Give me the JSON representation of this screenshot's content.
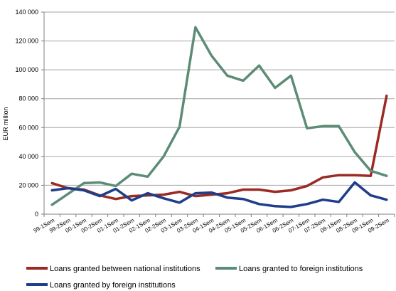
{
  "chart_data": {
    "type": "line",
    "title": "",
    "xlabel": "",
    "ylabel": "EUR million",
    "ylim": [
      0,
      140000
    ],
    "yticks": [
      0,
      20000,
      40000,
      60000,
      80000,
      100000,
      120000,
      140000
    ],
    "ytick_labels": [
      "0",
      "20 000",
      "40 000",
      "60 000",
      "80 000",
      "100 000",
      "120 000",
      "140 000"
    ],
    "grid": "horizontal",
    "legend_position": "bottom",
    "categories": [
      "99-1Sem",
      "99-2Sem",
      "00-1Sem",
      "00-2Sem",
      "01-1Sem",
      "01-2Sem",
      "02-1Sem",
      "02-2Sem",
      "03-1Sem",
      "03-2Sem",
      "04-1Sem",
      "04-2Sem",
      "05-1Sem",
      "05-2Sem",
      "06-1Sem",
      "06-2Sem",
      "07-1Sem",
      "07-2Sem",
      "08-1Sem",
      "08-2Sem",
      "09-1Sem",
      "09-2Sem"
    ],
    "series": [
      {
        "name": "Loans granted between national institutions",
        "color": "#9b2a24",
        "values": [
          21500,
          18000,
          17000,
          13000,
          10500,
          12500,
          13000,
          13500,
          15500,
          12500,
          13500,
          14500,
          17000,
          17000,
          15500,
          16500,
          19500,
          25500,
          27000,
          27000,
          26500,
          82000
        ]
      },
      {
        "name": "Loans granted to foreign institutions",
        "color": "#5c8c76",
        "values": [
          6500,
          14000,
          21500,
          22000,
          19500,
          28000,
          26000,
          40000,
          60500,
          129500,
          110000,
          96000,
          92500,
          103000,
          87500,
          96000,
          59500,
          61000,
          61000,
          43000,
          30000,
          26500
        ]
      },
      {
        "name": "Loans granted by foreign institutions",
        "color": "#1e3d8a",
        "values": [
          16500,
          18000,
          16500,
          12500,
          17500,
          9500,
          14500,
          11000,
          8000,
          14500,
          15000,
          11500,
          10500,
          7000,
          5500,
          5000,
          7000,
          10000,
          8500,
          22000,
          13000,
          10000
        ]
      }
    ]
  }
}
